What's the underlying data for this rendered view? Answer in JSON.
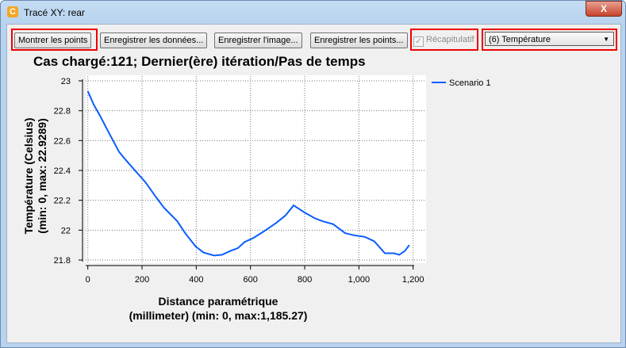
{
  "window": {
    "title": "Tracé XY: rear",
    "close_label": "X"
  },
  "toolbar": {
    "show_points": "Montrer les points",
    "save_data": "Enregistrer les données...",
    "save_image": "Enregistrer l'image...",
    "save_points": "Enregistrer les points...",
    "summary_label": "Récapitulatif",
    "summary_checked": true,
    "variable_select": "(6) Température"
  },
  "highlight_color": "#e00000",
  "chart_data": {
    "type": "line",
    "title": "Cas chargé:121; Dernier(ère) itération/Pas de temps",
    "xlabel": "Distance paramétrique",
    "xlabel2": "(millimeter) (min: 0, max:1,185.27)",
    "ylabel": "Température (Celsius)",
    "ylabel2": "(min: 0, max: 22.9289)",
    "xlim": [
      0,
      1200
    ],
    "ylim": [
      21.8,
      23
    ],
    "xticks": [
      "0",
      "200",
      "400",
      "600",
      "800",
      "1,000",
      "1,200"
    ],
    "yticks": [
      "21.8",
      "22",
      "22.2",
      "22.4",
      "22.6",
      "22.8",
      "23"
    ],
    "grid": true,
    "legend_placement": "right",
    "series": [
      {
        "name": "Scenario 1",
        "color": "#0a5cff",
        "x": [
          0,
          22,
          47,
          71,
          115,
          140,
          174,
          213,
          252,
          281,
          330,
          359,
          398,
          427,
          466,
          495,
          525,
          554,
          578,
          613,
          652,
          696,
          730,
          759,
          798,
          837,
          866,
          905,
          949,
          983,
          1022,
          1057,
          1096,
          1130,
          1149,
          1169,
          1186
        ],
        "y": [
          22.93,
          22.84,
          22.76,
          22.675,
          22.525,
          22.47,
          22.4,
          22.32,
          22.22,
          22.15,
          22.06,
          21.98,
          21.89,
          21.85,
          21.83,
          21.835,
          21.86,
          21.88,
          21.92,
          21.95,
          21.995,
          22.05,
          22.1,
          22.166,
          22.12,
          22.08,
          22.06,
          22.04,
          21.98,
          21.965,
          21.955,
          21.925,
          21.845,
          21.845,
          21.835,
          21.86,
          21.9
        ]
      }
    ]
  }
}
